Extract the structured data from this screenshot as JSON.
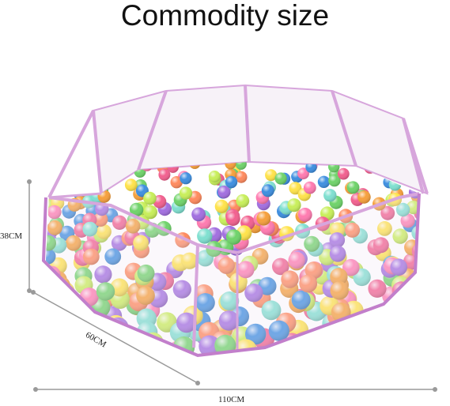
{
  "title": "Commodity size",
  "dimensions": {
    "height": "38CM",
    "depth": "60CM",
    "width": "110CM"
  },
  "colors": {
    "frame": "#d7a6dc",
    "frame_edge": "#c27fcb",
    "mesh": "#f1e6f4",
    "dim_line": "#9a9a9a"
  },
  "ball_colors": [
    "#f2608f",
    "#f6a03c",
    "#ffe34a",
    "#6fd36a",
    "#3e8fe0",
    "#a26fe0",
    "#ff8a5e",
    "#7fe0d0",
    "#ff7bb0",
    "#c8ef5a"
  ]
}
